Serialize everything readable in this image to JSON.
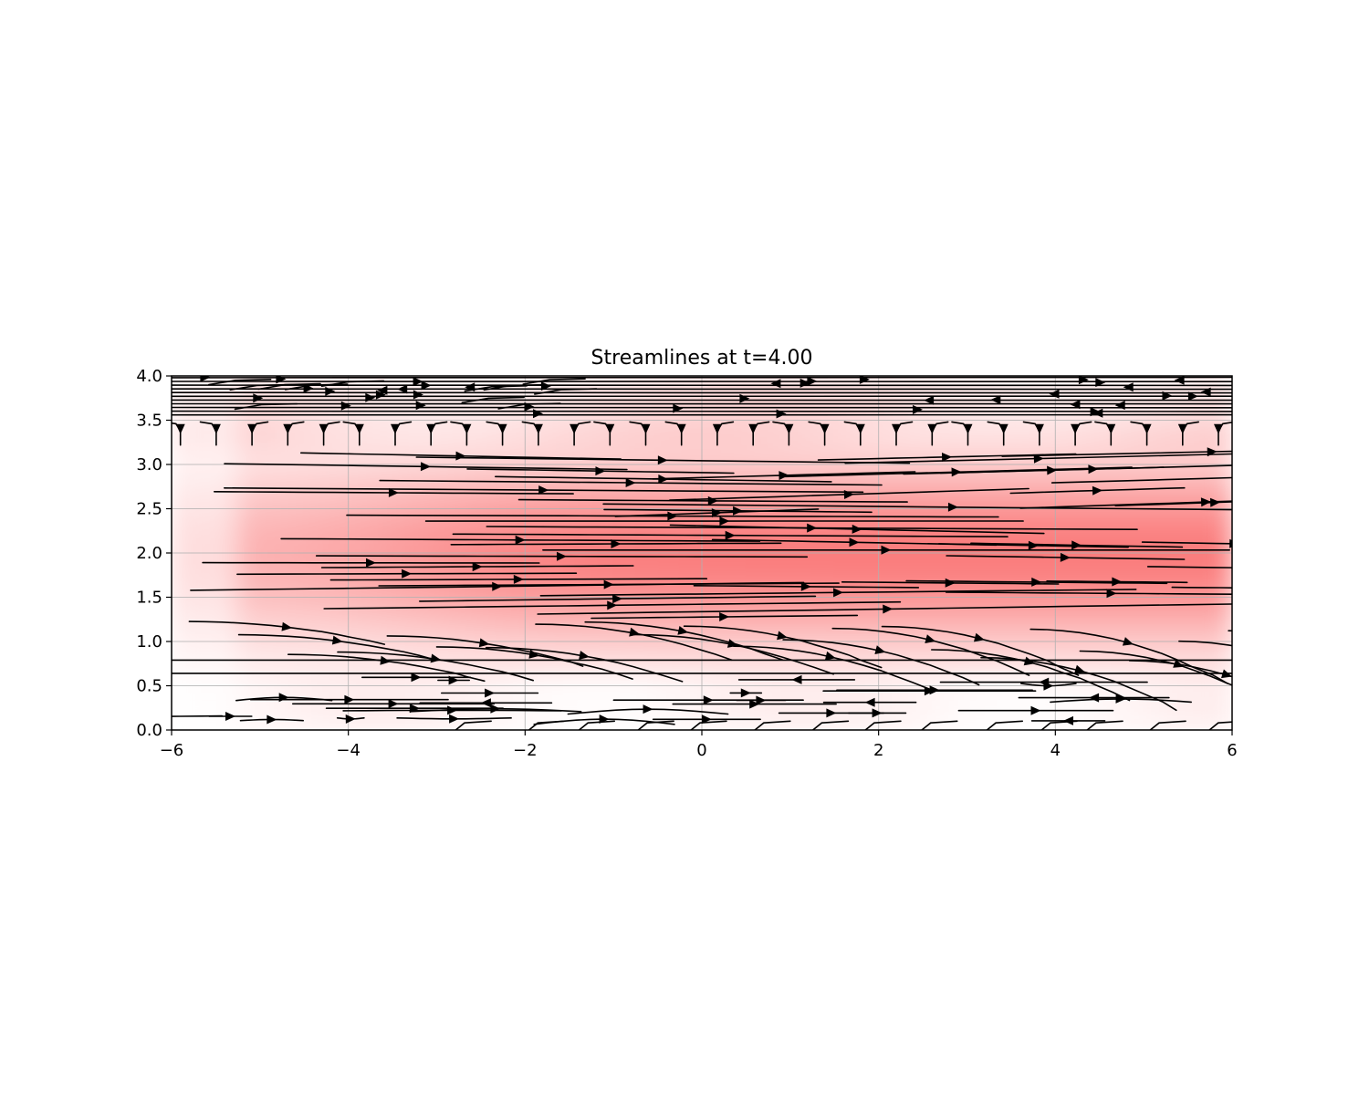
{
  "chart_data": {
    "type": "streamplot",
    "title": "Streamlines at t=4.00",
    "xlabel": "",
    "ylabel": "",
    "xlim": [
      -6,
      6
    ],
    "ylim": [
      0.0,
      4.0
    ],
    "x_ticks": [
      -6,
      -4,
      -2,
      0,
      2,
      4,
      6
    ],
    "x_tick_labels": [
      "−6",
      "−4",
      "−2",
      "0",
      "2",
      "4",
      "6"
    ],
    "y_ticks": [
      0.0,
      0.5,
      1.0,
      1.5,
      2.0,
      2.5,
      3.0,
      3.5,
      4.0
    ],
    "y_tick_labels": [
      "0.0",
      "0.5",
      "1.0",
      "1.5",
      "2.0",
      "2.5",
      "3.0",
      "3.5",
      "4.0"
    ],
    "grid": true,
    "legend": "none",
    "background_field": {
      "colormap": "white-to-red",
      "low_color": "#ffffff",
      "high_color": "#fa7b7b",
      "description_regions": [
        {
          "x": [
            -6,
            6
          ],
          "y": [
            0.0,
            0.65
          ],
          "level": 0.1
        },
        {
          "x": [
            -6,
            6
          ],
          "y": [
            3.3,
            4.0
          ],
          "level": 0.25
        },
        {
          "x": [
            -3,
            6
          ],
          "y": [
            0.9,
            3.2
          ],
          "level": 0.85
        }
      ]
    },
    "streamline_color": "#000000",
    "streamline_bands": [
      {
        "y_range": [
          0.0,
          0.65
        ],
        "pattern": "short fragmented lines, mixed direction, mostly rightward"
      },
      {
        "y_range": [
          0.65,
          1.3
        ],
        "pattern": "lines curving downward toward the right"
      },
      {
        "y_range": [
          1.3,
          3.2
        ],
        "pattern": "smooth, nearly horizontal rightward flow with slight convergence"
      },
      {
        "y_range": [
          3.3,
          3.55
        ],
        "pattern": "short hooks turning downward"
      },
      {
        "y_range": [
          3.55,
          4.0
        ],
        "pattern": "dense horizontal lines, mixed directions"
      }
    ]
  }
}
